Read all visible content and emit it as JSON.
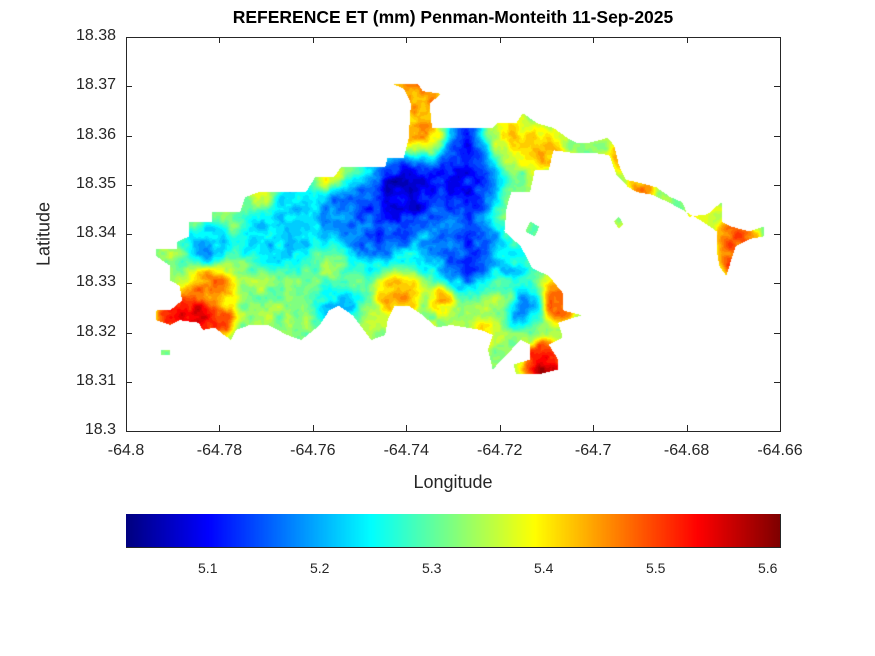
{
  "chart_data": {
    "type": "heatmap",
    "title": "REFERENCE ET (mm) Penman-Monteith 11-Sep-2025",
    "xlabel": "Longitude",
    "ylabel": "Latitude",
    "xlim": [
      -64.8,
      -64.66
    ],
    "ylim": [
      18.3,
      18.38
    ],
    "xticks": [
      -64.8,
      -64.78,
      -64.76,
      -64.74,
      -64.72,
      -64.7,
      -64.68,
      -64.66
    ],
    "xtick_labels": [
      "-64.8",
      "-64.78",
      "-64.76",
      "-64.74",
      "-64.72",
      "-64.7",
      "-64.68",
      "-64.66"
    ],
    "yticks": [
      18.3,
      18.31,
      18.32,
      18.33,
      18.34,
      18.35,
      18.36,
      18.37,
      18.38
    ],
    "ytick_labels": [
      "18.3",
      "18.31",
      "18.32",
      "18.33",
      "18.34",
      "18.35",
      "18.36",
      "18.37",
      "18.38"
    ],
    "colormap": "jet",
    "colorbar": {
      "location": "southoutside",
      "clim": [
        5.027,
        5.611
      ],
      "ticks": [
        5.1,
        5.2,
        5.3,
        5.4,
        5.5,
        5.6
      ],
      "tick_labels": [
        "5.1",
        "5.2",
        "5.3",
        "5.4",
        "5.5",
        "5.6"
      ]
    },
    "background_value": 5.33,
    "outline": [
      [
        -64.7935,
        18.3355
      ],
      [
        -64.7935,
        18.337
      ],
      [
        -64.789,
        18.337
      ],
      [
        -64.789,
        18.3385
      ],
      [
        -64.7865,
        18.3395
      ],
      [
        -64.7865,
        18.3425
      ],
      [
        -64.7815,
        18.3425
      ],
      [
        -64.7815,
        18.3445
      ],
      [
        -64.7755,
        18.3445
      ],
      [
        -64.7745,
        18.3475
      ],
      [
        -64.7715,
        18.3485
      ],
      [
        -64.7615,
        18.3485
      ],
      [
        -64.7595,
        18.3515
      ],
      [
        -64.7555,
        18.3515
      ],
      [
        -64.754,
        18.3535
      ],
      [
        -64.7445,
        18.3535
      ],
      [
        -64.744,
        18.3555
      ],
      [
        -64.7405,
        18.3555
      ],
      [
        -64.7395,
        18.3595
      ],
      [
        -64.739,
        18.3665
      ],
      [
        -64.7405,
        18.3695
      ],
      [
        -64.743,
        18.3705
      ],
      [
        -64.7375,
        18.3705
      ],
      [
        -64.7365,
        18.369
      ],
      [
        -64.7325,
        18.3685
      ],
      [
        -64.735,
        18.3665
      ],
      [
        -64.7345,
        18.3615
      ],
      [
        -64.7215,
        18.3615
      ],
      [
        -64.7205,
        18.3625
      ],
      [
        -64.7165,
        18.3625
      ],
      [
        -64.715,
        18.3645
      ],
      [
        -64.712,
        18.3625
      ],
      [
        -64.7085,
        18.3615
      ],
      [
        -64.7055,
        18.3595
      ],
      [
        -64.7035,
        18.3585
      ],
      [
        -64.701,
        18.3585
      ],
      [
        -64.697,
        18.3595
      ],
      [
        -64.6955,
        18.358
      ],
      [
        -64.6945,
        18.354
      ],
      [
        -64.693,
        18.351
      ],
      [
        -64.6905,
        18.3505
      ],
      [
        -64.6865,
        18.3495
      ],
      [
        -64.6835,
        18.3475
      ],
      [
        -64.681,
        18.3465
      ],
      [
        -64.6795,
        18.3435
      ],
      [
        -64.6755,
        18.344
      ],
      [
        -64.6725,
        18.3465
      ],
      [
        -64.6725,
        18.3425
      ],
      [
        -64.6705,
        18.3415
      ],
      [
        -64.6665,
        18.3405
      ],
      [
        -64.6635,
        18.3415
      ],
      [
        -64.6635,
        18.3395
      ],
      [
        -64.6665,
        18.339
      ],
      [
        -64.6695,
        18.3375
      ],
      [
        -64.6705,
        18.3345
      ],
      [
        -64.6715,
        18.3315
      ],
      [
        -64.673,
        18.3335
      ],
      [
        -64.6735,
        18.3365
      ],
      [
        -64.6735,
        18.3405
      ],
      [
        -64.6765,
        18.3425
      ],
      [
        -64.681,
        18.345
      ],
      [
        -64.684,
        18.3465
      ],
      [
        -64.6875,
        18.348
      ],
      [
        -64.6905,
        18.3485
      ],
      [
        -64.6925,
        18.3495
      ],
      [
        -64.695,
        18.352
      ],
      [
        -64.6965,
        18.356
      ],
      [
        -64.7,
        18.3565
      ],
      [
        -64.7045,
        18.3565
      ],
      [
        -64.7085,
        18.357
      ],
      [
        -64.7095,
        18.353
      ],
      [
        -64.7125,
        18.353
      ],
      [
        -64.7135,
        18.3485
      ],
      [
        -64.7175,
        18.3485
      ],
      [
        -64.7185,
        18.3455
      ],
      [
        -64.719,
        18.3405
      ],
      [
        -64.7155,
        18.3375
      ],
      [
        -64.713,
        18.333
      ],
      [
        -64.7095,
        18.3315
      ],
      [
        -64.7065,
        18.328
      ],
      [
        -64.7065,
        18.3245
      ],
      [
        -64.7025,
        18.3235
      ],
      [
        -64.7075,
        18.322
      ],
      [
        -64.7065,
        18.319
      ],
      [
        -64.7095,
        18.3175
      ],
      [
        -64.7075,
        18.3145
      ],
      [
        -64.7075,
        18.3125
      ],
      [
        -64.7115,
        18.3115
      ],
      [
        -64.7165,
        18.3115
      ],
      [
        -64.717,
        18.3135
      ],
      [
        -64.7135,
        18.3145
      ],
      [
        -64.7135,
        18.3175
      ],
      [
        -64.7155,
        18.3185
      ],
      [
        -64.7165,
        18.3175
      ],
      [
        -64.7195,
        18.3145
      ],
      [
        -64.7215,
        18.3125
      ],
      [
        -64.7225,
        18.3165
      ],
      [
        -64.7215,
        18.3195
      ],
      [
        -64.724,
        18.3205
      ],
      [
        -64.7305,
        18.3215
      ],
      [
        -64.7335,
        18.321
      ],
      [
        -64.7365,
        18.3235
      ],
      [
        -64.7395,
        18.3255
      ],
      [
        -64.7425,
        18.3255
      ],
      [
        -64.744,
        18.3225
      ],
      [
        -64.7445,
        18.3195
      ],
      [
        -64.7475,
        18.3185
      ],
      [
        -64.7515,
        18.3235
      ],
      [
        -64.7545,
        18.3255
      ],
      [
        -64.7565,
        18.3245
      ],
      [
        -64.7585,
        18.3215
      ],
      [
        -64.7625,
        18.3185
      ],
      [
        -64.7655,
        18.3195
      ],
      [
        -64.7695,
        18.3215
      ],
      [
        -64.7735,
        18.3215
      ],
      [
        -64.7765,
        18.3205
      ],
      [
        -64.7775,
        18.3185
      ],
      [
        -64.779,
        18.3195
      ],
      [
        -64.781,
        18.321
      ],
      [
        -64.7835,
        18.3205
      ],
      [
        -64.7845,
        18.322
      ],
      [
        -64.7885,
        18.3225
      ],
      [
        -64.7905,
        18.3215
      ],
      [
        -64.7935,
        18.3225
      ],
      [
        -64.7935,
        18.3245
      ],
      [
        -64.7905,
        18.3245
      ],
      [
        -64.788,
        18.3265
      ],
      [
        -64.7885,
        18.3295
      ],
      [
        -64.7905,
        18.3305
      ],
      [
        -64.7905,
        18.3335
      ]
    ],
    "islets": [
      [
        [
          -64.7135,
          18.3425
        ],
        [
          -64.7115,
          18.3415
        ],
        [
          -64.7125,
          18.3395
        ],
        [
          -64.7145,
          18.3405
        ]
      ],
      [
        [
          -64.6955,
          18.3425
        ],
        [
          -64.6945,
          18.3435
        ],
        [
          -64.6935,
          18.342
        ],
        [
          -64.6945,
          18.341
        ]
      ],
      [
        [
          -64.7925,
          18.3165
        ],
        [
          -64.7905,
          18.3165
        ],
        [
          -64.7905,
          18.3155
        ],
        [
          -64.7925,
          18.3155
        ]
      ]
    ],
    "field": [
      {
        "lon": -64.7395,
        "lat": 18.3485,
        "value": 5.03,
        "radius": 0.006
      },
      {
        "lon": -64.7265,
        "lat": 18.3565,
        "value": 5.07,
        "radius": 0.005
      },
      {
        "lon": -64.7285,
        "lat": 18.3485,
        "value": 5.08,
        "radius": 0.005
      },
      {
        "lon": -64.7265,
        "lat": 18.3365,
        "value": 5.09,
        "radius": 0.005
      },
      {
        "lon": -64.7465,
        "lat": 18.3425,
        "value": 5.12,
        "radius": 0.006
      },
      {
        "lon": -64.7545,
        "lat": 18.3445,
        "value": 5.15,
        "radius": 0.004
      },
      {
        "lon": -64.7655,
        "lat": 18.3425,
        "value": 5.2,
        "radius": 0.006
      },
      {
        "lon": -64.7825,
        "lat": 18.3375,
        "value": 5.17,
        "radius": 0.003
      },
      {
        "lon": -64.7715,
        "lat": 18.3385,
        "value": 5.22,
        "radius": 0.003
      },
      {
        "lon": -64.7325,
        "lat": 18.3395,
        "value": 5.18,
        "radius": 0.005
      },
      {
        "lon": -64.7195,
        "lat": 18.3335,
        "value": 5.22,
        "radius": 0.004
      },
      {
        "lon": -64.7145,
        "lat": 18.3255,
        "value": 5.17,
        "radius": 0.003
      },
      {
        "lon": -64.7545,
        "lat": 18.3255,
        "value": 5.2,
        "radius": 0.003
      },
      {
        "lon": -64.7365,
        "lat": 18.3605,
        "value": 5.45,
        "radius": 0.004
      },
      {
        "lon": -64.7375,
        "lat": 18.3695,
        "value": 5.47,
        "radius": 0.004
      },
      {
        "lon": -64.7195,
        "lat": 18.3595,
        "value": 5.42,
        "radius": 0.004
      },
      {
        "lon": -64.7105,
        "lat": 18.3575,
        "value": 5.44,
        "radius": 0.003
      },
      {
        "lon": -64.7015,
        "lat": 18.3595,
        "value": 5.33,
        "radius": 0.003
      },
      {
        "lon": -64.6985,
        "lat": 18.3535,
        "value": 5.34,
        "radius": 0.002
      },
      {
        "lon": -64.6935,
        "lat": 18.355,
        "value": 5.48,
        "radius": 0.002
      },
      {
        "lon": -64.6895,
        "lat": 18.3495,
        "value": 5.47,
        "radius": 0.002
      },
      {
        "lon": -64.6775,
        "lat": 18.3435,
        "value": 5.4,
        "radius": 0.002
      },
      {
        "lon": -64.6695,
        "lat": 18.3385,
        "value": 5.52,
        "radius": 0.003
      },
      {
        "lon": -64.6705,
        "lat": 18.3345,
        "value": 5.5,
        "radius": 0.002
      },
      {
        "lon": -64.7855,
        "lat": 18.3225,
        "value": 5.6,
        "radius": 0.004
      },
      {
        "lon": -64.7905,
        "lat": 18.3235,
        "value": 5.54,
        "radius": 0.002
      },
      {
        "lon": -64.7815,
        "lat": 18.3295,
        "value": 5.48,
        "radius": 0.003
      },
      {
        "lon": -64.7795,
        "lat": 18.3225,
        "value": 5.5,
        "radius": 0.002
      },
      {
        "lon": -64.7415,
        "lat": 18.3275,
        "value": 5.46,
        "radius": 0.003
      },
      {
        "lon": -64.7325,
        "lat": 18.3265,
        "value": 5.44,
        "radius": 0.002
      },
      {
        "lon": -64.7705,
        "lat": 18.3475,
        "value": 5.45,
        "radius": 0.002
      },
      {
        "lon": -64.7565,
        "lat": 18.3515,
        "value": 5.4,
        "radius": 0.002
      },
      {
        "lon": -64.7105,
        "lat": 18.3135,
        "value": 5.6,
        "radius": 0.003
      },
      {
        "lon": -64.7075,
        "lat": 18.3265,
        "value": 5.5,
        "radius": 0.003
      },
      {
        "lon": -64.7225,
        "lat": 18.3205,
        "value": 5.4,
        "radius": 0.002
      },
      {
        "lon": -64.7205,
        "lat": 18.3275,
        "value": 5.35,
        "radius": 0.003
      }
    ]
  }
}
